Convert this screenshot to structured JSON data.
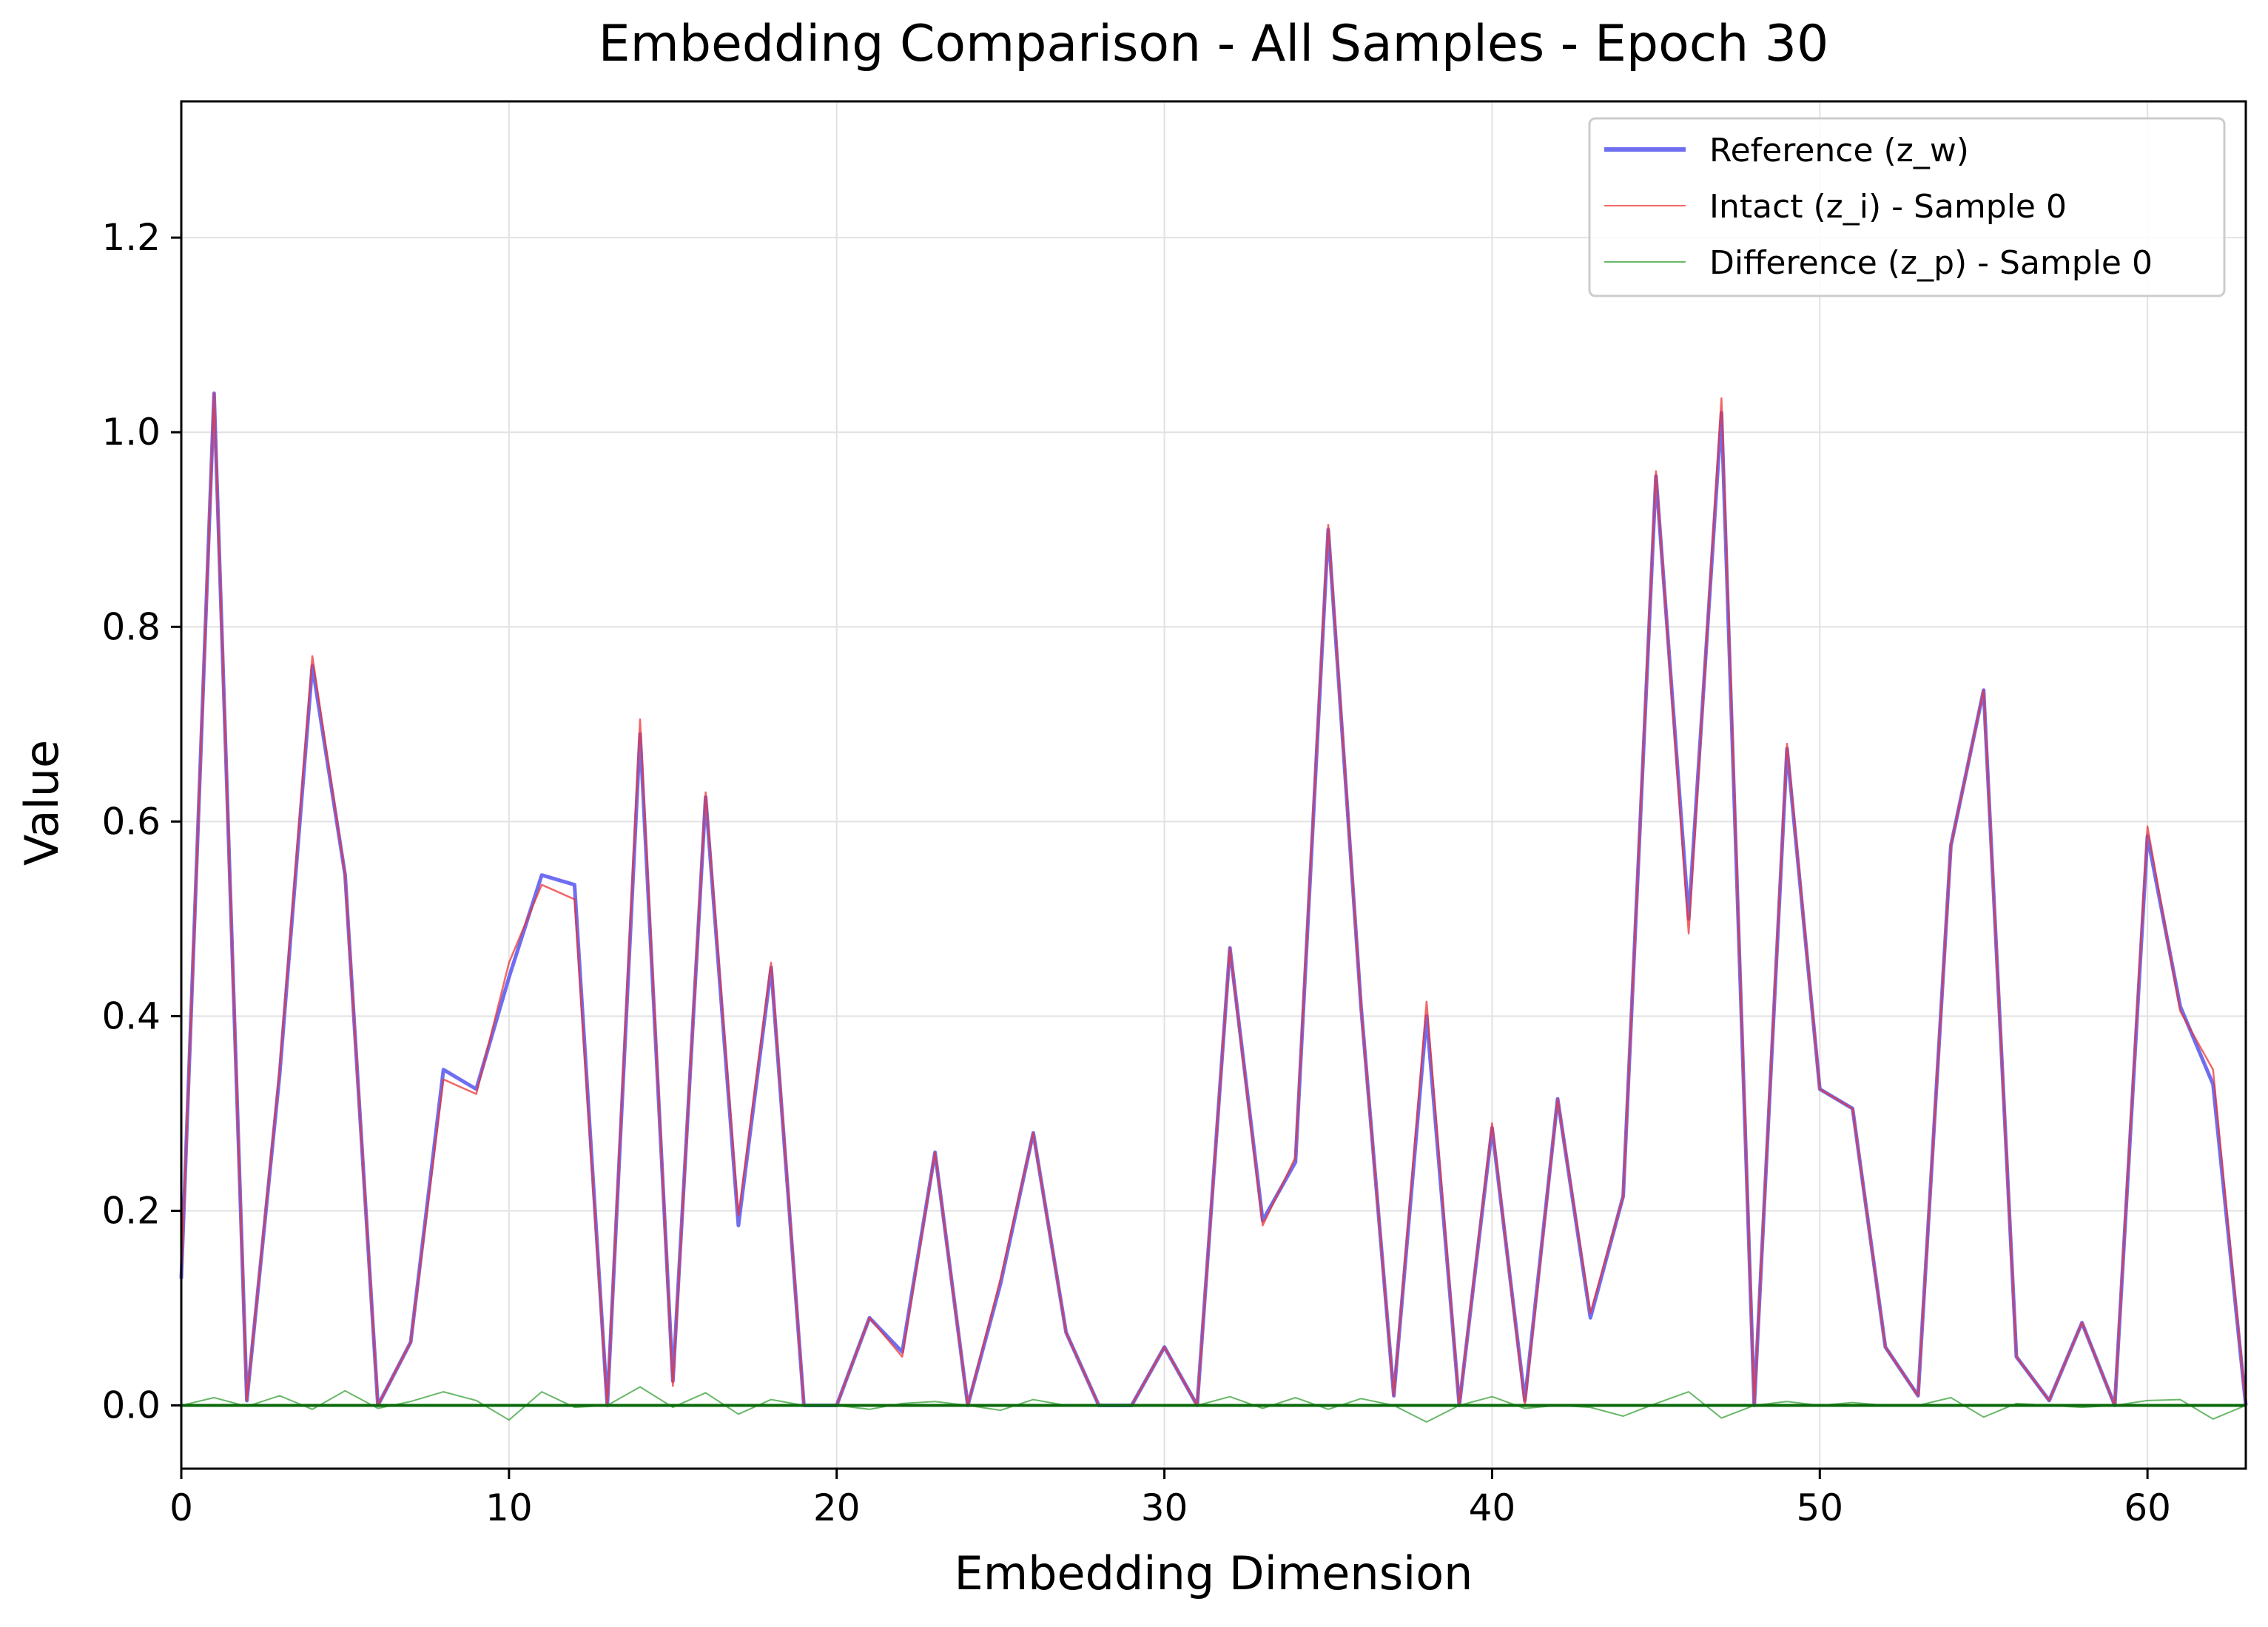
{
  "chart_data": {
    "type": "line",
    "title": "Embedding Comparison - All Samples - Epoch 30",
    "xlabel": "Embedding Dimension",
    "ylabel": "Value",
    "xlim": [
      0,
      63
    ],
    "ylim": [
      -0.065,
      1.34
    ],
    "xticks": [
      0,
      10,
      20,
      30,
      40,
      50,
      60
    ],
    "yticks": [
      0.0,
      0.2,
      0.4,
      0.6,
      0.8,
      1.0,
      1.2
    ],
    "ytick_labels": [
      "0.0",
      "0.2",
      "0.4",
      "0.6",
      "0.8",
      "1.0",
      "1.2"
    ],
    "grid": true,
    "legend_position": "top-right",
    "x": [
      0,
      1,
      2,
      3,
      4,
      5,
      6,
      7,
      8,
      9,
      10,
      11,
      12,
      13,
      14,
      15,
      16,
      17,
      18,
      19,
      20,
      21,
      22,
      23,
      24,
      25,
      26,
      27,
      28,
      29,
      30,
      31,
      32,
      33,
      34,
      35,
      36,
      37,
      38,
      39,
      40,
      41,
      42,
      43,
      44,
      45,
      46,
      47,
      48,
      49,
      50,
      51,
      52,
      53,
      54,
      55,
      56,
      57,
      58,
      59,
      60,
      61,
      62,
      63
    ],
    "series": [
      {
        "name": "Reference (z_w)",
        "color": "#5555ee",
        "values": [
          0.13,
          1.04,
          0.005,
          0.34,
          0.76,
          0.545,
          0.0,
          0.065,
          0.345,
          0.325,
          0.44,
          0.545,
          0.535,
          0.0,
          0.69,
          0.025,
          0.625,
          0.185,
          0.45,
          0.0,
          0.0,
          0.09,
          0.055,
          0.26,
          0.0,
          0.125,
          0.28,
          0.075,
          0.0,
          0.0,
          0.06,
          0.0,
          0.47,
          0.19,
          0.25,
          0.9,
          0.41,
          0.01,
          0.4,
          0.0,
          0.285,
          0.005,
          0.315,
          0.09,
          0.215,
          0.955,
          0.5,
          1.02,
          0.0,
          0.675,
          0.325,
          0.305,
          0.06,
          0.01,
          0.575,
          0.735,
          0.05,
          0.005,
          0.085,
          0.0,
          0.585,
          0.41,
          0.33,
          0.0
        ]
      },
      {
        "name": "Intact (z_i) - Sample 0",
        "color": "#ee3333",
        "values": [
          0.13,
          1.04,
          0.005,
          0.345,
          0.77,
          0.545,
          0.0,
          0.065,
          0.335,
          0.32,
          0.455,
          0.535,
          0.52,
          0.0,
          0.705,
          0.02,
          0.63,
          0.195,
          0.455,
          0.0,
          0.0,
          0.09,
          0.05,
          0.26,
          0.0,
          0.13,
          0.28,
          0.075,
          0.0,
          0.0,
          0.06,
          0.0,
          0.47,
          0.185,
          0.255,
          0.905,
          0.41,
          0.01,
          0.415,
          0.0,
          0.29,
          0.0,
          0.315,
          0.095,
          0.215,
          0.96,
          0.485,
          1.035,
          0.0,
          0.68,
          0.325,
          0.305,
          0.06,
          0.01,
          0.575,
          0.735,
          0.05,
          0.005,
          0.085,
          0.0,
          0.595,
          0.405,
          0.345,
          0.0
        ]
      },
      {
        "name": "Difference (z_p) - Sample 0",
        "color": "#2a9a2a",
        "values": [
          0.0,
          0.008,
          -0.001,
          0.01,
          -0.004,
          0.015,
          -0.003,
          0.004,
          0.014,
          0.005,
          -0.015,
          0.014,
          -0.002,
          0.0,
          0.019,
          -0.002,
          0.013,
          -0.009,
          0.006,
          0.0,
          0.0,
          -0.004,
          0.002,
          0.004,
          0.0,
          -0.005,
          0.006,
          0.0,
          0.0,
          0.0,
          0.0,
          0.0,
          0.009,
          -0.003,
          0.008,
          -0.004,
          0.007,
          0.0,
          -0.017,
          0.0,
          0.009,
          -0.003,
          0.0,
          -0.002,
          -0.011,
          0.002,
          0.014,
          -0.013,
          0.0,
          0.004,
          0.0,
          0.003,
          0.0,
          0.0,
          0.008,
          -0.012,
          0.002,
          0.0,
          -0.002,
          0.0,
          0.005,
          0.006,
          -0.014,
          0.0
        ]
      }
    ]
  }
}
